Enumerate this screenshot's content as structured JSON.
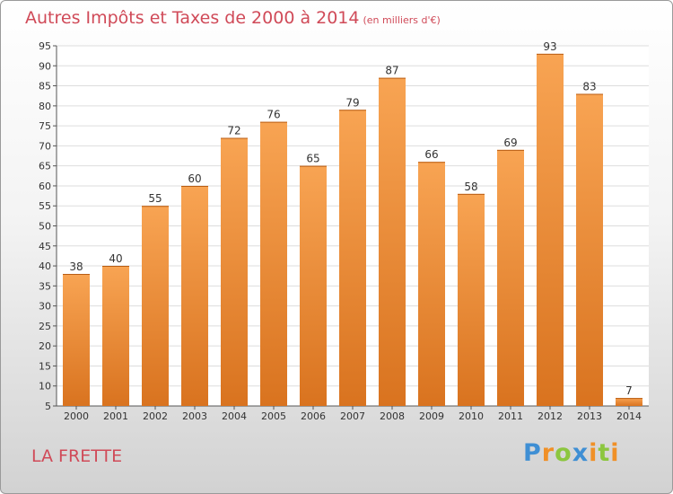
{
  "header": {
    "title": "Autres Impôts et Taxes de 2000 à 2014",
    "unit": "(en milliers d'€)"
  },
  "footer": {
    "commune": "LA FRETTE",
    "logo": [
      "P",
      "r",
      "o",
      "x",
      "i",
      "t",
      "i"
    ]
  },
  "colors": {
    "title": "#d04a58",
    "bar_light": "#f8a453",
    "bar_dark": "#d9731f",
    "grid": "#dddddd",
    "logo": [
      "#3f8fd4",
      "#f09027",
      "#8cc63f",
      "#3f8fd4",
      "#f09027",
      "#8cc63f",
      "#f09027"
    ]
  },
  "chart_data": {
    "type": "bar",
    "title": "Autres Impôts et Taxes de 2000 à 2014",
    "subtitle": "(en milliers d'€)",
    "categories": [
      "2000",
      "2001",
      "2002",
      "2003",
      "2004",
      "2005",
      "2006",
      "2007",
      "2008",
      "2009",
      "2010",
      "2011",
      "2012",
      "2013",
      "2014"
    ],
    "values": [
      38,
      40,
      55,
      60,
      72,
      76,
      65,
      79,
      87,
      66,
      58,
      69,
      93,
      83,
      7
    ],
    "ylim": [
      5,
      95
    ],
    "yticks": [
      5,
      10,
      15,
      20,
      25,
      30,
      35,
      40,
      45,
      50,
      55,
      60,
      65,
      70,
      75,
      80,
      85,
      90,
      95
    ],
    "grid": true,
    "legend": "none"
  }
}
